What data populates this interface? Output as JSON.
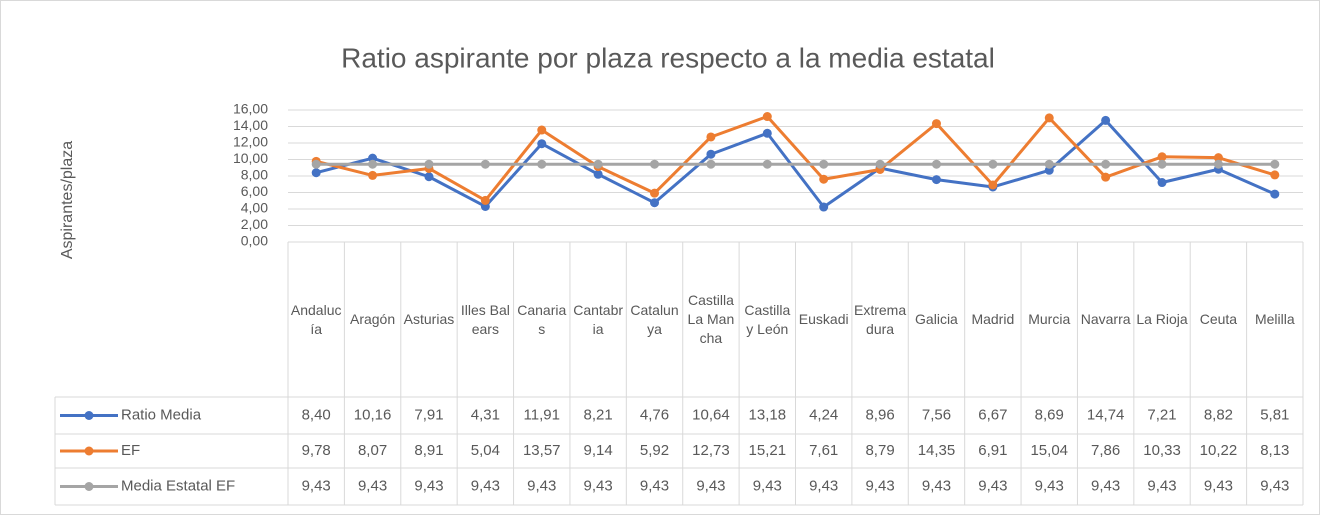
{
  "chart_data": {
    "type": "line",
    "title": "Ratio aspirante por plaza respecto a la media estatal",
    "y_label": "Aspirantes/plaza",
    "categories": [
      "Andalucía",
      "Aragón",
      "Asturias",
      "Illes Balears",
      "Canarias",
      "Cantabria",
      "Catalunya",
      "Castilla La Mancha",
      "Castilla y León",
      "Euskadi",
      "Extremadura",
      "Galicia",
      "Madrid",
      "Murcia",
      "Navarra",
      "La Rioja",
      "Ceuta",
      "Melilla"
    ],
    "series": [
      {
        "name": "Ratio Media",
        "color": "#4472c4",
        "values": [
          8.4,
          10.16,
          7.91,
          4.31,
          11.91,
          8.21,
          4.76,
          10.64,
          13.18,
          4.24,
          8.96,
          7.56,
          6.67,
          8.69,
          14.74,
          7.21,
          8.82,
          5.81
        ],
        "value_labels": [
          "8,40",
          "10,16",
          "7,91",
          "4,31",
          "11,91",
          "8,21",
          "4,76",
          "10,64",
          "13,18",
          "4,24",
          "8,96",
          "7,56",
          "6,67",
          "8,69",
          "14,74",
          "7,21",
          "8,82",
          "5,81"
        ]
      },
      {
        "name": "EF",
        "color": "#ed7d31",
        "values": [
          9.78,
          8.07,
          8.91,
          5.04,
          13.57,
          9.14,
          5.92,
          12.73,
          15.21,
          7.61,
          8.79,
          14.35,
          6.91,
          15.04,
          7.86,
          10.33,
          10.22,
          8.13
        ],
        "value_labels": [
          "9,78",
          "8,07",
          "8,91",
          "5,04",
          "13,57",
          "9,14",
          "5,92",
          "12,73",
          "15,21",
          "7,61",
          "8,79",
          "14,35",
          "6,91",
          "15,04",
          "7,86",
          "10,33",
          "10,22",
          "8,13"
        ]
      },
      {
        "name": "Media Estatal EF",
        "color": "#a5a5a5",
        "values": [
          9.43,
          9.43,
          9.43,
          9.43,
          9.43,
          9.43,
          9.43,
          9.43,
          9.43,
          9.43,
          9.43,
          9.43,
          9.43,
          9.43,
          9.43,
          9.43,
          9.43,
          9.43
        ],
        "value_labels": [
          "9,43",
          "9,43",
          "9,43",
          "9,43",
          "9,43",
          "9,43",
          "9,43",
          "9,43",
          "9,43",
          "9,43",
          "9,43",
          "9,43",
          "9,43",
          "9,43",
          "9,43",
          "9,43",
          "9,43",
          "9,43"
        ]
      }
    ],
    "ylim": [
      0,
      16
    ],
    "yticks": [
      {
        "value": 0,
        "label": "0,00"
      },
      {
        "value": 2,
        "label": "2,00"
      },
      {
        "value": 4,
        "label": "4,00"
      },
      {
        "value": 6,
        "label": "6,00"
      },
      {
        "value": 8,
        "label": "8,00"
      },
      {
        "value": 10,
        "label": "10,00"
      },
      {
        "value": 12,
        "label": "12,00"
      },
      {
        "value": 14,
        "label": "14,00"
      },
      {
        "value": 16,
        "label": "16,00"
      }
    ],
    "grid": true
  }
}
